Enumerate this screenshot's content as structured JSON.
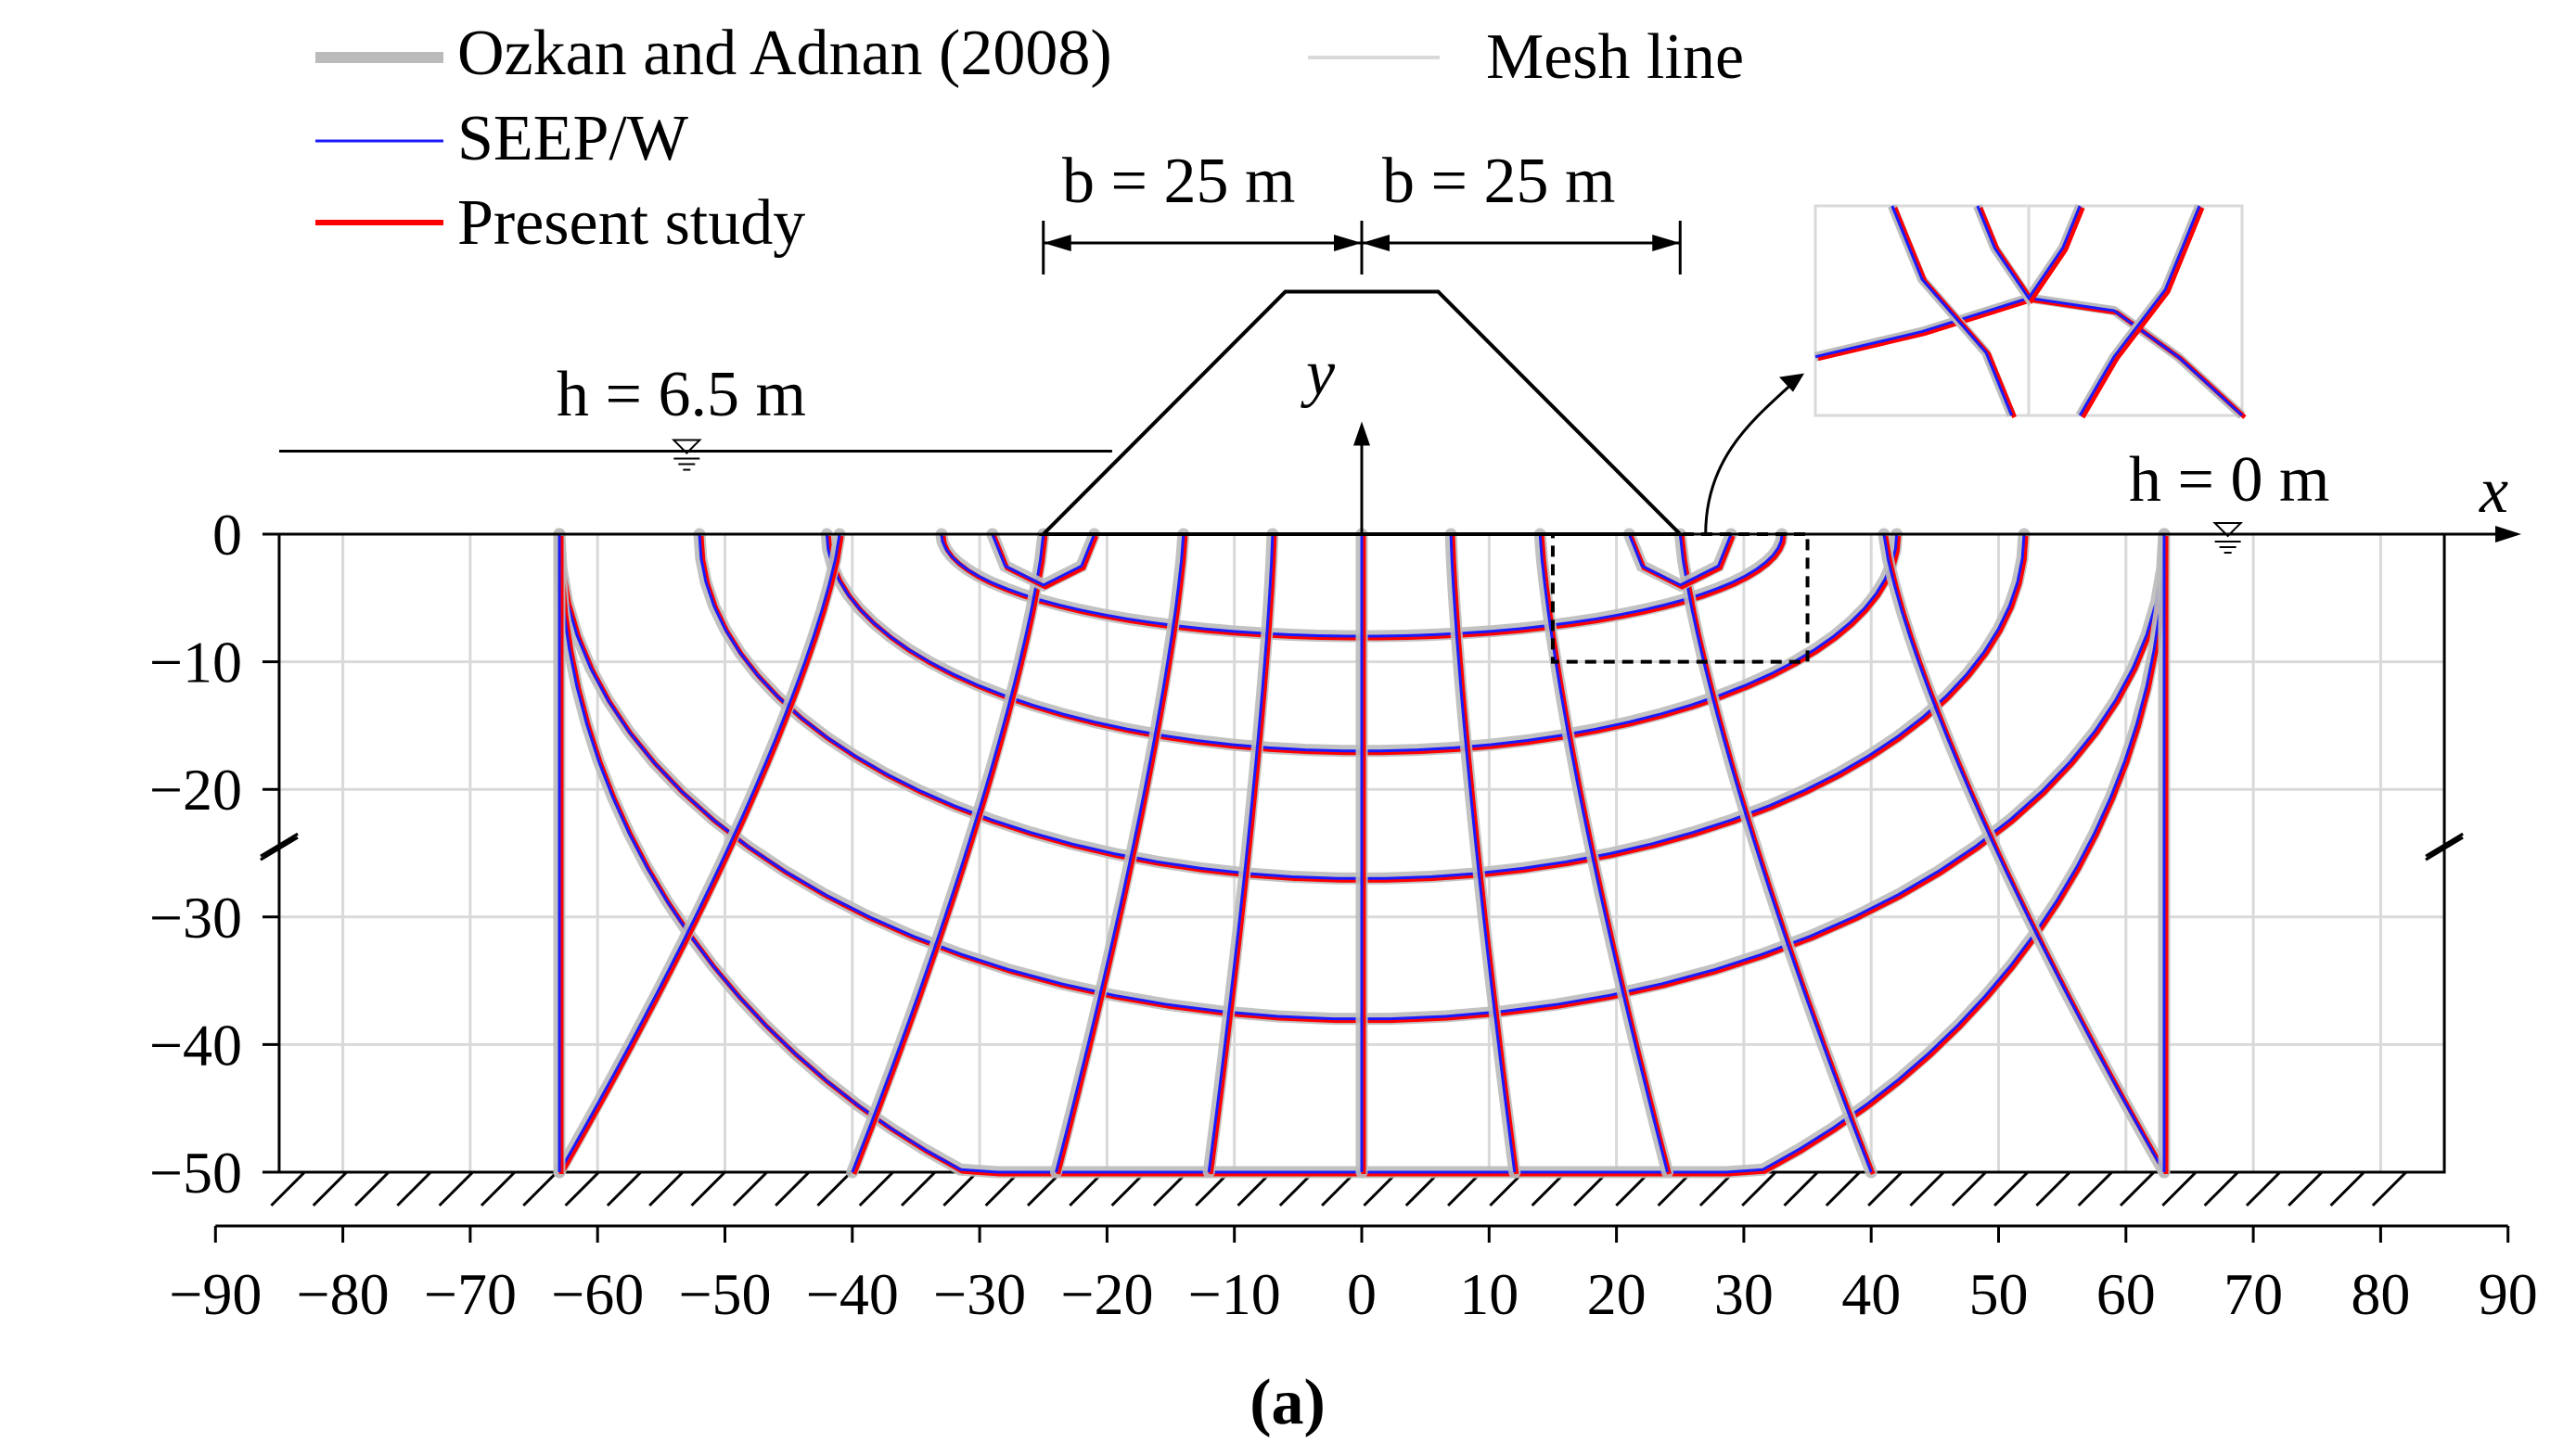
{
  "chart_data": {
    "type": "line",
    "panel_label": "(a)",
    "x_axis": {
      "label": "x",
      "range": [
        -90,
        90
      ],
      "ticks": [
        -90,
        -80,
        -70,
        -60,
        -50,
        -40,
        -30,
        -20,
        -10,
        0,
        10,
        20,
        30,
        40,
        50,
        60,
        70,
        80,
        90
      ],
      "tick_labels": [
        "−90",
        "−80",
        "−70",
        "−60",
        "−50",
        "−40",
        "−30",
        "−20",
        "−10",
        "0",
        "10",
        "20",
        "30",
        "40",
        "50",
        "60",
        "70",
        "80",
        "90"
      ]
    },
    "y_axis": {
      "label": "y",
      "range": [
        -50,
        0
      ],
      "ticks": [
        0,
        -10,
        -20,
        -30,
        -40,
        -50
      ],
      "tick_labels": [
        "0",
        "−10",
        "−20",
        "−30",
        "−40",
        "−50"
      ]
    },
    "domain": {
      "x": [
        -85,
        85
      ],
      "y": [
        -50,
        0
      ]
    },
    "mesh_spacing": 10,
    "dam": {
      "base_x": [
        -25,
        25
      ],
      "crest_x": [
        -6,
        6
      ],
      "height": 19
    },
    "annotations": {
      "upstream_head": "h = 6.5 m",
      "downstream_head": "h = 0 m",
      "half_width_left": "b = 25 m",
      "half_width_right": "b = 25 m",
      "upstream_water_level": 6.5,
      "upstream_water_start_x": -85,
      "downstream_water_symbol_x": 68
    },
    "legend": [
      {
        "name": "Ozkan and Adnan (2008)",
        "color": "#bbbbbb"
      },
      {
        "name": "Mesh line",
        "color": "#d9d9d9"
      },
      {
        "name": "SEEP/W",
        "color": "#1a1aff"
      },
      {
        "name": "Present study",
        "color": "#ff0000"
      }
    ],
    "flow_lines": [
      {
        "x0": 8.0,
        "depth": 8
      },
      {
        "x0": 17.0,
        "depth": 17
      },
      {
        "x0": 27.0,
        "depth": 27
      },
      {
        "x0": 38.0,
        "depth": 38
      }
    ],
    "equipotential_lines": [
      {
        "x_surface": 0,
        "x_bottom": 0
      },
      {
        "x_surface": 7,
        "x_bottom": 12
      },
      {
        "x_surface": 14,
        "x_bottom": 24
      },
      {
        "x_surface": 25,
        "x_bottom": 40
      },
      {
        "x_surface": 41,
        "x_bottom": 63
      },
      {
        "x_surface": 63,
        "x_bottom": 63
      }
    ],
    "inset": {
      "x_range": [
        15,
        35
      ],
      "y_range": [
        -10,
        0
      ],
      "description_text": ""
    }
  }
}
